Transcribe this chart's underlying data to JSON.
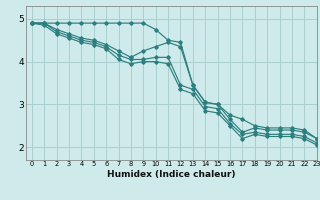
{
  "xlabel": "Humidex (Indice chaleur)",
  "ylabel": "",
  "bg_color": "#ceeaea",
  "grid_color": "#aacfcf",
  "line_color": "#2d7f7f",
  "xlim": [
    -0.5,
    23
  ],
  "ylim": [
    1.7,
    5.3
  ],
  "yticks": [
    2,
    3,
    4,
    5
  ],
  "xticks": [
    0,
    1,
    2,
    3,
    4,
    5,
    6,
    7,
    8,
    9,
    10,
    11,
    12,
    13,
    14,
    15,
    16,
    17,
    18,
    19,
    20,
    21,
    22,
    23
  ],
  "series": [
    {
      "x": [
        0,
        1,
        2,
        3,
        4,
        5,
        6,
        7,
        8,
        9,
        10,
        11,
        12,
        13,
        14,
        15,
        16,
        17,
        18,
        19,
        20,
        21,
        22,
        23
      ],
      "y": [
        4.9,
        4.9,
        4.9,
        4.9,
        4.9,
        4.9,
        4.9,
        4.9,
        4.9,
        4.9,
        4.75,
        4.5,
        4.45,
        3.45,
        3.05,
        3.0,
        2.75,
        2.65,
        2.5,
        2.45,
        2.45,
        2.45,
        2.4,
        2.2
      ]
    },
    {
      "x": [
        0,
        1,
        2,
        3,
        4,
        5,
        6,
        7,
        8,
        9,
        10,
        11,
        12,
        13,
        14,
        15,
        16,
        17,
        18,
        19,
        20,
        21,
        22,
        23
      ],
      "y": [
        4.9,
        4.9,
        4.75,
        4.65,
        4.55,
        4.5,
        4.4,
        4.25,
        4.1,
        4.25,
        4.35,
        4.45,
        4.35,
        3.45,
        3.05,
        3.0,
        2.65,
        2.35,
        2.45,
        2.4,
        2.4,
        2.4,
        2.35,
        2.2
      ]
    },
    {
      "x": [
        0,
        1,
        2,
        3,
        4,
        5,
        6,
        7,
        8,
        9,
        10,
        11,
        12,
        13,
        14,
        15,
        16,
        17,
        18,
        19,
        20,
        21,
        22,
        23
      ],
      "y": [
        4.9,
        4.9,
        4.7,
        4.6,
        4.5,
        4.45,
        4.35,
        4.15,
        4.05,
        4.05,
        4.1,
        4.1,
        3.45,
        3.35,
        2.95,
        2.9,
        2.55,
        2.3,
        2.35,
        2.3,
        2.3,
        2.3,
        2.25,
        2.1
      ]
    },
    {
      "x": [
        0,
        1,
        2,
        3,
        4,
        5,
        6,
        7,
        8,
        9,
        10,
        11,
        12,
        13,
        14,
        15,
        16,
        17,
        18,
        19,
        20,
        21,
        22,
        23
      ],
      "y": [
        4.9,
        4.85,
        4.65,
        4.55,
        4.45,
        4.4,
        4.3,
        4.05,
        3.95,
        4.0,
        4.0,
        3.95,
        3.35,
        3.25,
        2.85,
        2.8,
        2.5,
        2.2,
        2.3,
        2.25,
        2.25,
        2.25,
        2.2,
        2.05
      ]
    }
  ]
}
